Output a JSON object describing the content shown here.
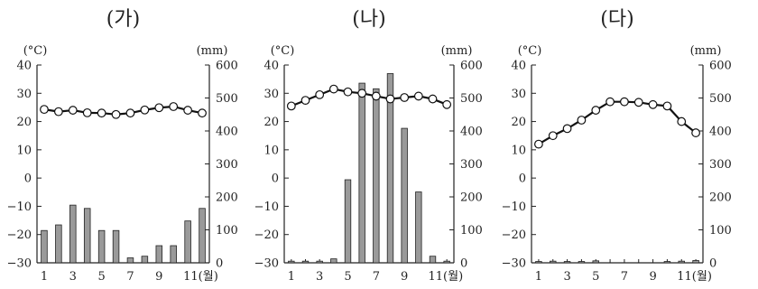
{
  "chart_data": [
    {
      "type": "bar+line",
      "title": "(가)",
      "y_left_unit": "(°C)",
      "y_right_unit": "(mm)",
      "y_left_range": [
        -30,
        40
      ],
      "y_right_range": [
        0,
        600
      ],
      "y_left_ticks": [
        "40",
        "30",
        "20",
        "10",
        "0",
        "−10",
        "−20",
        "−30"
      ],
      "y_right_ticks": [
        "600",
        "500",
        "400",
        "300",
        "200",
        "100",
        "0"
      ],
      "x_tick_labels": [
        "1",
        "3",
        "5",
        "7",
        "9",
        "11(월)"
      ],
      "months": [
        1,
        2,
        3,
        4,
        5,
        6,
        7,
        8,
        9,
        10,
        11,
        12
      ],
      "series": [
        {
          "kind": "temperature",
          "values": [
            24.3,
            23.5,
            24.0,
            23.1,
            23.0,
            22.5,
            23.0,
            24.1,
            24.9,
            25.3,
            24.0,
            23.0
          ]
        },
        {
          "kind": "precipitation",
          "values": [
            98,
            115,
            175,
            165,
            98,
            98,
            15,
            20,
            52,
            52,
            127,
            165
          ]
        }
      ]
    },
    {
      "type": "bar+line",
      "title": "(나)",
      "y_left_unit": "(°C)",
      "y_right_unit": "(mm)",
      "y_left_range": [
        -30,
        40
      ],
      "y_right_range": [
        0,
        600
      ],
      "y_left_ticks": [
        "40",
        "30",
        "20",
        "10",
        "0",
        "−10",
        "−20",
        "−30"
      ],
      "y_right_ticks": [
        "600",
        "500",
        "400",
        "300",
        "200",
        "100",
        "0"
      ],
      "x_tick_labels": [
        "1",
        "3",
        "5",
        "7",
        "9",
        "11(월)"
      ],
      "months": [
        1,
        2,
        3,
        4,
        5,
        6,
        7,
        8,
        9,
        10,
        11,
        12
      ],
      "series": [
        {
          "kind": "temperature",
          "values": [
            25.5,
            27.5,
            29.5,
            31.5,
            30.5,
            30.0,
            29.0,
            28.0,
            28.5,
            29.0,
            28.0,
            26.0
          ]
        },
        {
          "kind": "precipitation",
          "values": [
            5,
            5,
            5,
            12,
            252,
            545,
            528,
            574,
            408,
            215,
            20,
            5
          ]
        }
      ]
    },
    {
      "type": "bar+line",
      "title": "(다)",
      "y_left_unit": "(°C)",
      "y_right_unit": "(mm)",
      "y_left_range": [
        -30,
        40
      ],
      "y_right_range": [
        0,
        600
      ],
      "y_left_ticks": [
        "40",
        "30",
        "20",
        "10",
        "0",
        "−10",
        "−20",
        "−30"
      ],
      "y_right_ticks": [
        "600",
        "500",
        "400",
        "300",
        "200",
        "100",
        "0"
      ],
      "x_tick_labels": [
        "1",
        "3",
        "5",
        "7",
        "9",
        "11(월)"
      ],
      "months": [
        1,
        2,
        3,
        4,
        5,
        6,
        7,
        8,
        9,
        10,
        11,
        12
      ],
      "series": [
        {
          "kind": "temperature",
          "values": [
            12.0,
            15.0,
            17.5,
            20.5,
            24.0,
            27.0,
            27.0,
            26.8,
            26.0,
            25.5,
            20.0,
            16.0
          ]
        },
        {
          "kind": "precipitation",
          "values": [
            4,
            5,
            4,
            4,
            6,
            0,
            0,
            0,
            0,
            4,
            5,
            7
          ]
        }
      ]
    }
  ]
}
